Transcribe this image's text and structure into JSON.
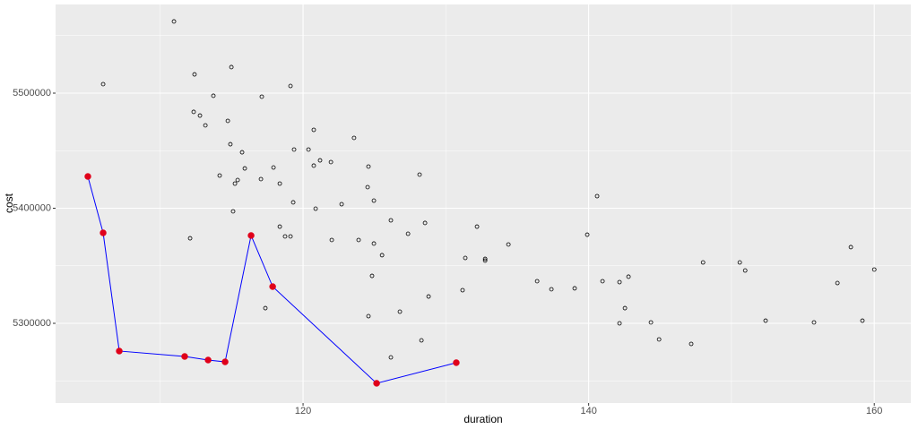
{
  "chart_data": {
    "type": "scatter",
    "x_label": "duration",
    "y_label": "cost",
    "xlim": [
      102.67,
      162.56
    ],
    "ylim": [
      5230739,
      5577043
    ],
    "xticks": [
      120,
      140,
      160
    ],
    "yticks": [
      5300000,
      5400000,
      5500000
    ],
    "xminor": [
      110,
      130,
      150
    ],
    "yminor": [
      5250000,
      5350000,
      5450000,
      5550000
    ],
    "grid": true,
    "panel_color": "#ebebeb",
    "series": [
      {
        "mode": "points",
        "marker": "open-circle",
        "color": "#000000",
        "x": [
          110.96,
          106.0,
          112.4,
          114.98,
          119.12,
          113.72,
          117.11,
          112.34,
          112.78,
          113.16,
          114.73,
          120.75,
          123.57,
          114.91,
          119.37,
          120.38,
          115.73,
          121.19,
          121.95,
          120.75,
          117.93,
          115.92,
          124.58,
          114.16,
          128.16,
          117.05,
          115.42,
          115.23,
          118.37,
          124.52,
          140.59,
          124.96,
          119.31,
          122.7,
          120.88,
          115.1,
          126.15,
          128.54,
          132.18,
          118.37,
          127.35,
          139.9,
          118.74,
          119.12,
          112.09,
          122.01,
          123.89,
          124.96,
          134.38,
          158.36,
          125.53,
          131.36,
          132.75,
          132.75,
          148.01,
          150.58,
          160.0,
          150.96,
          142.79,
          124.83,
          136.39,
          140.97,
          142.16,
          157.42,
          139.02,
          137.39,
          131.17,
          128.79,
          117.36,
          142.54,
          126.78,
          124.58,
          152.39,
          159.17,
          144.36,
          155.78,
          142.16,
          128.29,
          144.93,
          147.18,
          126.15
        ],
        "values": [
          5562300,
          5507800,
          5516300,
          5522600,
          5506200,
          5497700,
          5496900,
          5483700,
          5480500,
          5472000,
          5475900,
          5468100,
          5461100,
          5455600,
          5451000,
          5451000,
          5448600,
          5441600,
          5440100,
          5437000,
          5435400,
          5434600,
          5436200,
          5428400,
          5429200,
          5425300,
          5424500,
          5421400,
          5421400,
          5418300,
          5410500,
          5406600,
          5405100,
          5403500,
          5399600,
          5397300,
          5389500,
          5387200,
          5384000,
          5384000,
          5377800,
          5377000,
          5375500,
          5375500,
          5373900,
          5372400,
          5372400,
          5369300,
          5368500,
          5366200,
          5359200,
          5356800,
          5356000,
          5354500,
          5352900,
          5352900,
          5346700,
          5345900,
          5340500,
          5341200,
          5336600,
          5336600,
          5335800,
          5335000,
          5330400,
          5329600,
          5328800,
          5323300,
          5313200,
          5313200,
          5310100,
          5306200,
          5302300,
          5302300,
          5300800,
          5300800,
          5300000,
          5285200,
          5286000,
          5282100,
          5270400
        ]
      },
      {
        "mode": "line+points",
        "marker": "filled-circle",
        "color": "#e0001a",
        "line_color": "#0000ff",
        "x": [
          104.93,
          106.0,
          107.13,
          111.71,
          113.35,
          114.54,
          116.36,
          117.87,
          125.15,
          130.73
        ],
        "values": [
          5427600,
          5378600,
          5275900,
          5271200,
          5268100,
          5266500,
          5376300,
          5331900,
          5247900,
          5265800
        ]
      }
    ]
  }
}
